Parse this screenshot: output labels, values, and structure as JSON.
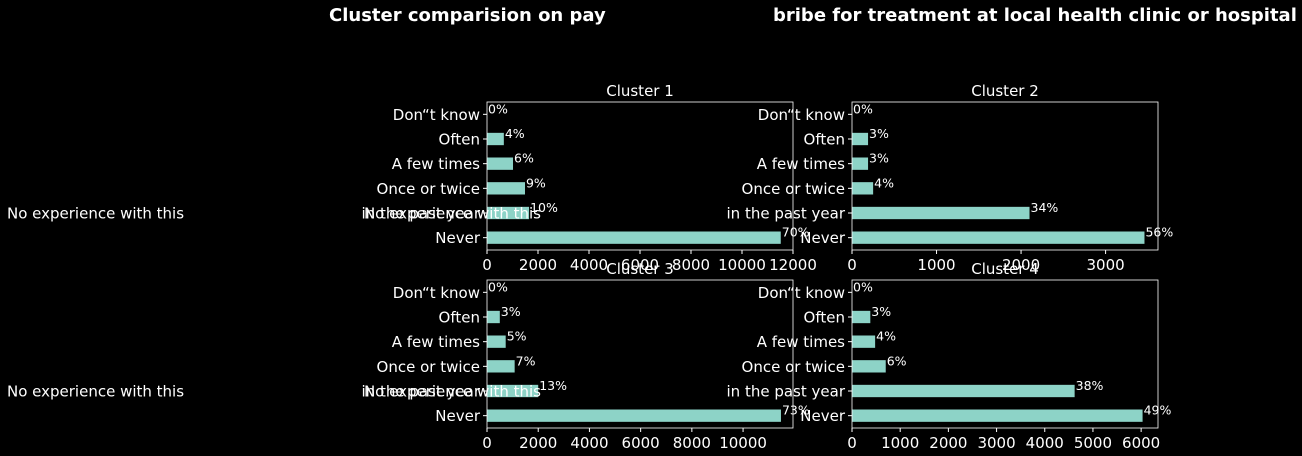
{
  "title_left": "Cluster comparision on pay",
  "title_right": "bribe for treatment at local health clinic or hospital",
  "colors": {
    "bar": "#8dd3c7",
    "background": "#000000",
    "text": "#ffffff",
    "axis": "#ffffff"
  },
  "chart_data": [
    {
      "type": "bar",
      "orientation": "horizontal",
      "title": "Cluster 1",
      "categories": [
        "Never",
        "in the past year",
        "Once or twice",
        "A few times",
        "Often",
        "Don“t know"
      ],
      "overlay_label": "No experience with this",
      "values": [
        11520,
        1650,
        1490,
        1020,
        660,
        0
      ],
      "percent_labels": [
        "70%",
        "10%",
        "9%",
        "6%",
        "4%",
        "0%"
      ],
      "xlim": [
        0,
        12000
      ],
      "xticks": [
        0,
        2000,
        4000,
        6000,
        8000,
        10000,
        12000
      ]
    },
    {
      "type": "bar",
      "orientation": "horizontal",
      "title": "Cluster 2",
      "categories": [
        "Never",
        "in the past year",
        "Once or twice",
        "A few times",
        "Often",
        "Don“t know"
      ],
      "values": [
        3460,
        2100,
        250,
        190,
        190,
        0
      ],
      "percent_labels": [
        "56%",
        "34%",
        "4%",
        "3%",
        "3%",
        "0%"
      ],
      "xlim": [
        0,
        3620
      ],
      "xticks": [
        0,
        1000,
        2000,
        3000
      ]
    },
    {
      "type": "bar",
      "orientation": "horizontal",
      "title": "Cluster 3",
      "categories": [
        "Never",
        "in the past year",
        "Once or twice",
        "A few times",
        "Often",
        "Don“t know"
      ],
      "overlay_label": "No experience with this",
      "values": [
        11480,
        2000,
        1080,
        730,
        500,
        0
      ],
      "percent_labels": [
        "73%",
        "13%",
        "7%",
        "5%",
        "3%",
        "0%"
      ],
      "xlim": [
        0,
        11950
      ],
      "xticks": [
        0,
        2000,
        4000,
        6000,
        8000,
        10000
      ]
    },
    {
      "type": "bar",
      "orientation": "horizontal",
      "title": "Cluster 4",
      "categories": [
        "Never",
        "in the past year",
        "Once or twice",
        "A few times",
        "Often",
        "Don“t know"
      ],
      "values": [
        6030,
        4620,
        700,
        480,
        380,
        0
      ],
      "percent_labels": [
        "49%",
        "38%",
        "6%",
        "4%",
        "3%",
        "0%"
      ],
      "xlim": [
        0,
        6350
      ],
      "xticks": [
        0,
        1000,
        2000,
        3000,
        4000,
        5000,
        6000
      ]
    }
  ]
}
